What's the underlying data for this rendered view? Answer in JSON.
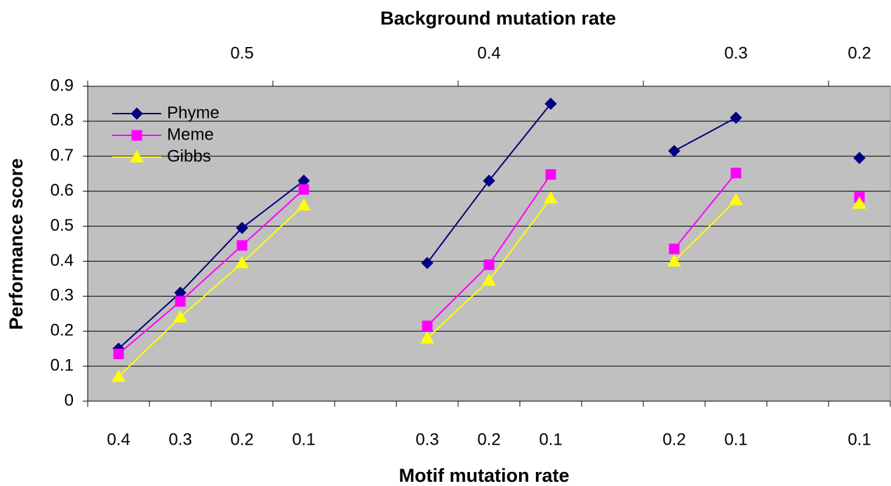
{
  "chart_data": {
    "type": "line",
    "title": "Background mutation rate",
    "x_label": "Motif mutation rate",
    "y_label": "Performance score",
    "categories": [
      "0.4",
      "0.3",
      "0.2",
      "0.1",
      null,
      "0.3",
      "0.2",
      "0.1",
      null,
      "0.2",
      "0.1",
      null,
      "0.1"
    ],
    "top_categories": [
      null,
      null,
      "0.5",
      null,
      null,
      null,
      "0.4",
      null,
      null,
      null,
      "0.3",
      null,
      "0.2"
    ],
    "series": [
      {
        "name": "Phyme",
        "color": "#000080",
        "marker": "diamond",
        "values": [
          0.15,
          0.31,
          0.495,
          0.63,
          null,
          0.395,
          0.63,
          0.85,
          null,
          0.715,
          0.81,
          null,
          0.695
        ]
      },
      {
        "name": "Meme",
        "color": "#ff00ff",
        "marker": "square",
        "values": [
          0.135,
          0.285,
          0.445,
          0.605,
          null,
          0.215,
          0.39,
          0.648,
          null,
          0.435,
          0.652,
          null,
          0.583
        ]
      },
      {
        "name": "Gibbs",
        "color": "#ffff00",
        "marker": "triangle",
        "values": [
          0.07,
          0.24,
          0.395,
          0.56,
          null,
          0.18,
          0.345,
          0.58,
          null,
          0.4,
          0.575,
          null,
          0.565
        ]
      }
    ],
    "ylim": [
      0,
      0.9
    ],
    "yticks": [
      0,
      0.1,
      0.2,
      0.3,
      0.4,
      0.5,
      0.6,
      0.7,
      0.8,
      0.9
    ],
    "grid": true,
    "legend": "upper left",
    "plot_background": "#c0c0c0"
  }
}
